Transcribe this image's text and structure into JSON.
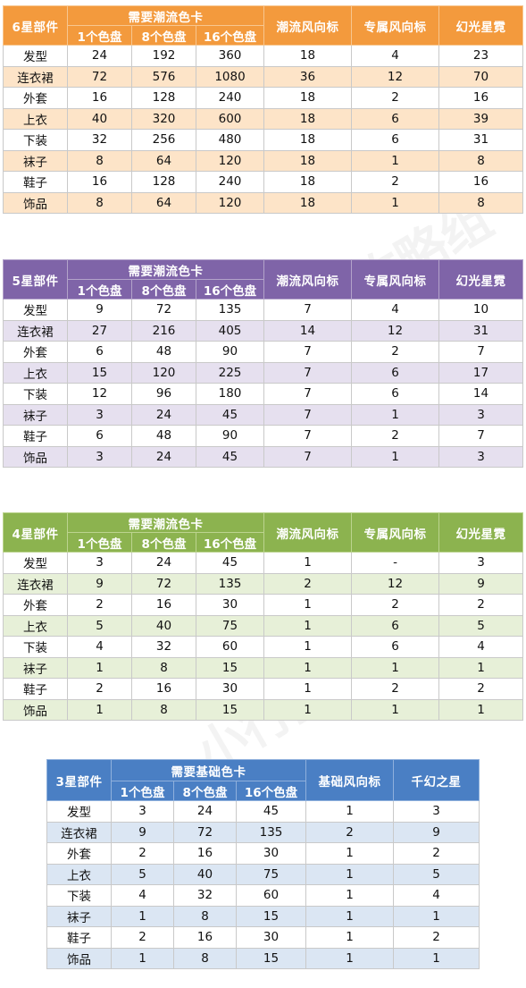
{
  "watermark": "小行星攻略组",
  "tables": {
    "t6": {
      "part_header": "6星部件",
      "group_header": "需要潮流色卡",
      "sub_headers": [
        "1个色盘",
        "8个色盘",
        "16个色盘"
      ],
      "col_a": "潮流风向标",
      "col_b": "专属风向标",
      "col_c": "幻光星霓",
      "rows": [
        [
          "发型",
          "24",
          "192",
          "360",
          "18",
          "4",
          "23"
        ],
        [
          "连衣裙",
          "72",
          "576",
          "1080",
          "36",
          "12",
          "70"
        ],
        [
          "外套",
          "16",
          "128",
          "240",
          "18",
          "2",
          "16"
        ],
        [
          "上衣",
          "40",
          "320",
          "600",
          "18",
          "6",
          "39"
        ],
        [
          "下装",
          "32",
          "256",
          "480",
          "18",
          "6",
          "31"
        ],
        [
          "袜子",
          "8",
          "64",
          "120",
          "18",
          "1",
          "8"
        ],
        [
          "鞋子",
          "16",
          "128",
          "240",
          "18",
          "2",
          "16"
        ],
        [
          "饰品",
          "8",
          "64",
          "120",
          "18",
          "1",
          "8"
        ]
      ],
      "colors": {
        "header": "#f39a3d",
        "stripe": "#fde4c8"
      }
    },
    "t5": {
      "part_header": "5星部件",
      "group_header": "需要潮流色卡",
      "sub_headers": [
        "1个色盘",
        "8个色盘",
        "16个色盘"
      ],
      "col_a": "潮流风向标",
      "col_b": "专属风向标",
      "col_c": "幻光星霓",
      "rows": [
        [
          "发型",
          "9",
          "72",
          "135",
          "7",
          "4",
          "10"
        ],
        [
          "连衣裙",
          "27",
          "216",
          "405",
          "14",
          "12",
          "31"
        ],
        [
          "外套",
          "6",
          "48",
          "90",
          "7",
          "2",
          "7"
        ],
        [
          "上衣",
          "15",
          "120",
          "225",
          "7",
          "6",
          "17"
        ],
        [
          "下装",
          "12",
          "96",
          "180",
          "7",
          "6",
          "14"
        ],
        [
          "袜子",
          "3",
          "24",
          "45",
          "7",
          "1",
          "3"
        ],
        [
          "鞋子",
          "6",
          "48",
          "90",
          "7",
          "2",
          "7"
        ],
        [
          "饰品",
          "3",
          "24",
          "45",
          "7",
          "1",
          "3"
        ]
      ],
      "colors": {
        "header": "#7f64a8",
        "stripe": "#e6e0ef"
      }
    },
    "t4": {
      "part_header": "4星部件",
      "group_header": "需要潮流色卡",
      "sub_headers": [
        "1个色盘",
        "8个色盘",
        "16个色盘"
      ],
      "col_a": "潮流风向标",
      "col_b": "专属风向标",
      "col_c": "幻光星霓",
      "rows": [
        [
          "发型",
          "3",
          "24",
          "45",
          "1",
          "-",
          "3"
        ],
        [
          "连衣裙",
          "9",
          "72",
          "135",
          "2",
          "12",
          "9"
        ],
        [
          "外套",
          "2",
          "16",
          "30",
          "1",
          "2",
          "2"
        ],
        [
          "上衣",
          "5",
          "40",
          "75",
          "1",
          "6",
          "5"
        ],
        [
          "下装",
          "4",
          "32",
          "60",
          "1",
          "6",
          "4"
        ],
        [
          "袜子",
          "1",
          "8",
          "15",
          "1",
          "1",
          "1"
        ],
        [
          "鞋子",
          "2",
          "16",
          "30",
          "1",
          "2",
          "2"
        ],
        [
          "饰品",
          "1",
          "8",
          "15",
          "1",
          "1",
          "1"
        ]
      ],
      "colors": {
        "header": "#8cb34f",
        "stripe": "#e7f0d8"
      }
    },
    "t3": {
      "part_header": "3星部件",
      "group_header": "需要基础色卡",
      "sub_headers": [
        "1个色盘",
        "8个色盘",
        "16个色盘"
      ],
      "col_a": "基础风向标",
      "col_c": "千幻之星",
      "rows": [
        [
          "发型",
          "3",
          "24",
          "45",
          "1",
          "3"
        ],
        [
          "连衣裙",
          "9",
          "72",
          "135",
          "2",
          "9"
        ],
        [
          "外套",
          "2",
          "16",
          "30",
          "1",
          "2"
        ],
        [
          "上衣",
          "5",
          "40",
          "75",
          "1",
          "5"
        ],
        [
          "下装",
          "4",
          "32",
          "60",
          "1",
          "4"
        ],
        [
          "袜子",
          "1",
          "8",
          "15",
          "1",
          "1"
        ],
        [
          "鞋子",
          "2",
          "16",
          "30",
          "1",
          "2"
        ],
        [
          "饰品",
          "1",
          "8",
          "15",
          "1",
          "1"
        ]
      ],
      "colors": {
        "header": "#4a7fc4",
        "stripe": "#dbe6f3"
      }
    }
  }
}
